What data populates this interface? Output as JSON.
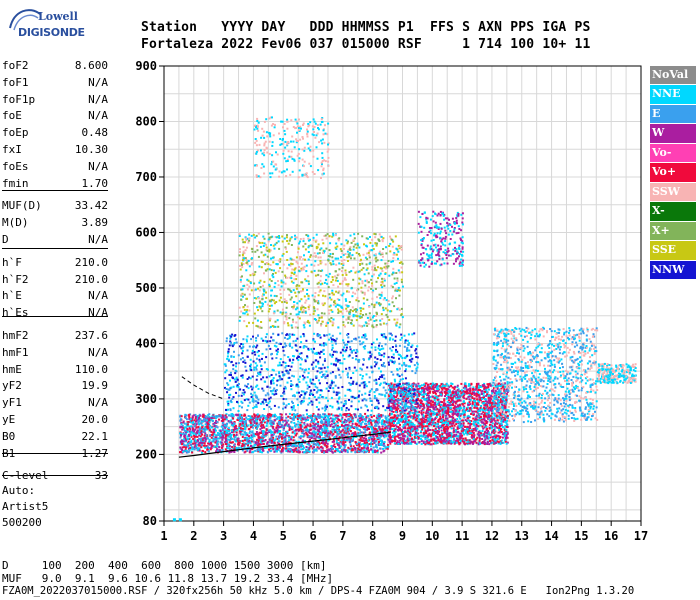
{
  "logo": {
    "line1": "Lowell",
    "line2": "DIGISONDE"
  },
  "header": {
    "line1": "Station   YYYY DAY   DDD HHMMSS P1  FFS S AXN PPS IGA PS",
    "line2": "Fortaleza 2022 Fev06 037 015000 RSF     1 714 100 10+ 11"
  },
  "params": [
    {
      "label": "foF2",
      "value": "8.600"
    },
    {
      "label": "foF1",
      "value": "N/A"
    },
    {
      "label": "foF1p",
      "value": "N/A"
    },
    {
      "label": "foE",
      "value": "N/A"
    },
    {
      "label": "foEp",
      "value": "0.48"
    },
    {
      "label": "fxI",
      "value": "10.30"
    },
    {
      "label": "foEs",
      "value": "N/A"
    },
    {
      "label": "fmin",
      "value": "1.70"
    },
    {
      "label": "MUF(D)",
      "value": "33.42"
    },
    {
      "label": "M(D)",
      "value": "3.89"
    },
    {
      "label": "D",
      "value": "N/A"
    },
    {
      "label": "h`F",
      "value": "210.0"
    },
    {
      "label": "h`F2",
      "value": "210.0"
    },
    {
      "label": "h`E",
      "value": "N/A"
    },
    {
      "label": "h`Es",
      "value": "N/A"
    },
    {
      "label": "hmF2",
      "value": "237.6"
    },
    {
      "label": "hmF1",
      "value": "N/A"
    },
    {
      "label": "hmE",
      "value": "110.0"
    },
    {
      "label": "yF2",
      "value": "19.9"
    },
    {
      "label": "yF1",
      "value": "N/A"
    },
    {
      "label": "yE",
      "value": "20.0"
    },
    {
      "label": "B0",
      "value": "22.1"
    },
    {
      "label": "B1",
      "value": "1.27"
    },
    {
      "label": "C-level",
      "value": "33"
    }
  ],
  "auto": {
    "line1": "Auto:",
    "line2": "Artist5",
    "line3": "500200"
  },
  "legend": [
    {
      "label": "NoVal",
      "color": "#8c8c8c"
    },
    {
      "label": "NNE",
      "color": "#00d8ff"
    },
    {
      "label": "E",
      "color": "#3aa0ee"
    },
    {
      "label": "W",
      "color": "#aa1ea0"
    },
    {
      "label": "Vo-",
      "color": "#ff40b4"
    },
    {
      "label": "Vo+",
      "color": "#f00a3c"
    },
    {
      "label": "SSW",
      "color": "#f8b4b4"
    },
    {
      "label": "X-",
      "color": "#0a780a"
    },
    {
      "label": "X+",
      "color": "#82b45a"
    },
    {
      "label": "SSE",
      "color": "#c8c814"
    },
    {
      "label": "NNW",
      "color": "#1414d2"
    }
  ],
  "bottom": {
    "line1": "D     100  200  400  600  800 1000 1500 3000 [km]",
    "line2": "MUF   9.0  9.1  9.6 10.6 11.8 13.7 19.2 33.4 [MHz]",
    "line3": "FZA0M_2022037015000.RSF / 320fx256h 50 kHz 5.0 km / DPS-4 FZA0M 904 / 3.9 S 321.6 E   Ion2Png 1.3.20"
  },
  "chart_data": {
    "type": "scatter",
    "title": "",
    "xlabel": "",
    "ylabel": "",
    "xlim": [
      1,
      17
    ],
    "ylim": [
      80,
      900
    ],
    "x_ticks": [
      1,
      2,
      3,
      4,
      5,
      6,
      7,
      8,
      9,
      10,
      11,
      12,
      13,
      14,
      15,
      16,
      17
    ],
    "y_ticks": [
      80,
      200,
      300,
      400,
      500,
      600,
      700,
      800,
      900
    ],
    "grid": true,
    "ionogram_trace": [
      {
        "f": 1.5,
        "h": 195
      },
      {
        "f": 2.0,
        "h": 198
      },
      {
        "f": 3.0,
        "h": 205
      },
      {
        "f": 4.0,
        "h": 212
      },
      {
        "f": 5.0,
        "h": 218
      },
      {
        "f": 6.0,
        "h": 224
      },
      {
        "f": 7.0,
        "h": 230
      },
      {
        "f": 8.0,
        "h": 236
      },
      {
        "f": 8.6,
        "h": 240
      }
    ],
    "dashed_extrapolation": [
      {
        "f": 1.6,
        "h": 340
      },
      {
        "f": 2.0,
        "h": 325
      },
      {
        "f": 2.5,
        "h": 310
      },
      {
        "f": 3.0,
        "h": 300
      }
    ],
    "echo_clusters": [
      {
        "f_range": [
          1.5,
          8.5
        ],
        "h_range": [
          205,
          275
        ],
        "density": "high",
        "dominant": [
          "Vo+",
          "W",
          "E",
          "NNE"
        ]
      },
      {
        "f_range": [
          8.5,
          12.5
        ],
        "h_range": [
          220,
          330
        ],
        "density": "high",
        "dominant": [
          "Vo+",
          "NNE",
          "W"
        ]
      },
      {
        "f_range": [
          3.0,
          9.5
        ],
        "h_range": [
          280,
          420
        ],
        "density": "medium",
        "dominant": [
          "NNE",
          "NNW",
          "E"
        ]
      },
      {
        "f_range": [
          3.5,
          9.0
        ],
        "h_range": [
          430,
          600
        ],
        "density": "medium",
        "dominant": [
          "SSW",
          "NNE",
          "X+",
          "SSE"
        ]
      },
      {
        "f_range": [
          9.5,
          11.0
        ],
        "h_range": [
          540,
          640
        ],
        "density": "low",
        "dominant": [
          "NNE",
          "W"
        ]
      },
      {
        "f_range": [
          4.0,
          6.5
        ],
        "h_range": [
          700,
          810
        ],
        "density": "low",
        "dominant": [
          "SSW",
          "NNE"
        ]
      },
      {
        "f_range": [
          12.0,
          15.5
        ],
        "h_range": [
          260,
          430
        ],
        "density": "medium",
        "dominant": [
          "SSW",
          "E",
          "NNE"
        ]
      },
      {
        "f_range": [
          15.5,
          16.8
        ],
        "h_range": [
          330,
          365
        ],
        "density": "low",
        "dominant": [
          "NNE",
          "SSW"
        ]
      }
    ]
  }
}
